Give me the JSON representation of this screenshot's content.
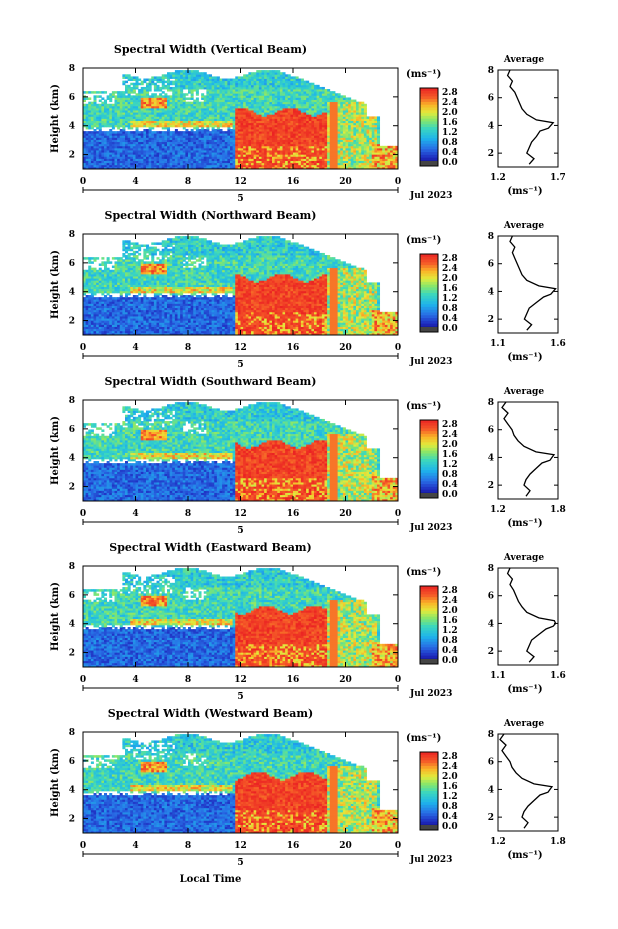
{
  "chart_data": [
    {
      "type": "heatmap",
      "title": "Spectral Width (Vertical Beam)",
      "xlabel": "",
      "ylabel": "Height (km)",
      "xticks": [
        "0",
        "4",
        "8",
        "12",
        "16",
        "20",
        "0"
      ],
      "xrange": [
        0,
        24
      ],
      "yticks": [
        "2",
        "4",
        "6",
        "8"
      ],
      "yrange": [
        1,
        8
      ],
      "date_label": "Jul 2023",
      "day_label": "5",
      "colorbar": {
        "unit": "(ms⁻¹)",
        "ticks": [
          "2.8",
          "2.4",
          "2.0",
          "1.6",
          "1.2",
          "0.8",
          "0.4",
          "0.0"
        ]
      },
      "profile": {
        "title": "Average",
        "xlabel": "(ms⁻¹)",
        "xticks": [
          "1.2",
          "1.7"
        ],
        "xrange": [
          1.2,
          1.7
        ],
        "yticks": [
          "2",
          "4",
          "6",
          "8"
        ],
        "yrange": [
          1,
          8
        ],
        "height_km": [
          1.2,
          1.6,
          2.0,
          2.4,
          2.8,
          3.2,
          3.6,
          3.8,
          4.0,
          4.2,
          4.4,
          4.8,
          5.2,
          5.6,
          6.0,
          6.4,
          6.8,
          7.2,
          7.6,
          8.0
        ],
        "values": [
          1.46,
          1.5,
          1.44,
          1.46,
          1.48,
          1.52,
          1.55,
          1.62,
          1.64,
          1.66,
          1.52,
          1.44,
          1.4,
          1.38,
          1.36,
          1.34,
          1.3,
          1.32,
          1.28,
          1.3
        ]
      }
    },
    {
      "type": "heatmap",
      "title": "Spectral Width (Northward Beam)",
      "xlabel": "",
      "ylabel": "Height (km)",
      "xticks": [
        "0",
        "4",
        "8",
        "12",
        "16",
        "20",
        "0"
      ],
      "xrange": [
        0,
        24
      ],
      "yticks": [
        "2",
        "4",
        "6",
        "8"
      ],
      "yrange": [
        1,
        8
      ],
      "date_label": "Jul 2023",
      "day_label": "5",
      "colorbar": {
        "unit": "(ms⁻¹)",
        "ticks": [
          "2.8",
          "2.4",
          "2.0",
          "1.6",
          "1.2",
          "0.8",
          "0.4",
          "0.0"
        ]
      },
      "profile": {
        "title": "Average",
        "xlabel": "(ms⁻¹)",
        "xticks": [
          "1.1",
          "1.6"
        ],
        "xrange": [
          1.1,
          1.6
        ],
        "yticks": [
          "2",
          "4",
          "6",
          "8"
        ],
        "yrange": [
          1,
          8
        ],
        "height_km": [
          1.2,
          1.6,
          2.0,
          2.4,
          2.8,
          3.2,
          3.6,
          3.8,
          4.0,
          4.2,
          4.4,
          4.8,
          5.2,
          5.6,
          6.0,
          6.4,
          6.8,
          7.2,
          7.6,
          8.0
        ],
        "values": [
          1.34,
          1.38,
          1.32,
          1.34,
          1.36,
          1.42,
          1.48,
          1.54,
          1.56,
          1.58,
          1.44,
          1.34,
          1.3,
          1.28,
          1.26,
          1.24,
          1.22,
          1.24,
          1.2,
          1.22
        ]
      }
    },
    {
      "type": "heatmap",
      "title": "Spectral Width (Southward Beam)",
      "xlabel": "",
      "ylabel": "Height (km)",
      "xticks": [
        "0",
        "4",
        "8",
        "12",
        "16",
        "20",
        "0"
      ],
      "xrange": [
        0,
        24
      ],
      "yticks": [
        "2",
        "4",
        "6",
        "8"
      ],
      "yrange": [
        1,
        8
      ],
      "date_label": "Jul 2023",
      "day_label": "5",
      "colorbar": {
        "unit": "(ms⁻¹)",
        "ticks": [
          "2.8",
          "2.4",
          "2.0",
          "1.6",
          "1.2",
          "0.8",
          "0.4",
          "0.0"
        ]
      },
      "profile": {
        "title": "Average",
        "xlabel": "(ms⁻¹)",
        "xticks": [
          "1.2",
          "1.8"
        ],
        "xrange": [
          1.2,
          1.8
        ],
        "yticks": [
          "2",
          "4",
          "6",
          "8"
        ],
        "yrange": [
          1,
          8
        ],
        "height_km": [
          1.2,
          1.6,
          2.0,
          2.4,
          2.8,
          3.2,
          3.6,
          3.8,
          4.0,
          4.2,
          4.4,
          4.8,
          5.2,
          5.6,
          6.0,
          6.4,
          6.8,
          7.2,
          7.6,
          8.0
        ],
        "values": [
          1.48,
          1.52,
          1.46,
          1.48,
          1.52,
          1.58,
          1.64,
          1.72,
          1.74,
          1.76,
          1.58,
          1.46,
          1.4,
          1.36,
          1.34,
          1.3,
          1.26,
          1.3,
          1.24,
          1.28
        ]
      }
    },
    {
      "type": "heatmap",
      "title": "Spectral Width (Eastward Beam)",
      "xlabel": "",
      "ylabel": "Height (km)",
      "xticks": [
        "0",
        "4",
        "8",
        "12",
        "16",
        "20",
        "0"
      ],
      "xrange": [
        0,
        24
      ],
      "yticks": [
        "2",
        "4",
        "6",
        "8"
      ],
      "yrange": [
        1,
        8
      ],
      "date_label": "Jul 2023",
      "day_label": "5",
      "colorbar": {
        "unit": "(ms⁻¹)",
        "ticks": [
          "2.8",
          "2.4",
          "2.0",
          "1.6",
          "1.2",
          "0.8",
          "0.4",
          "0.0"
        ]
      },
      "profile": {
        "title": "Average",
        "xlabel": "(ms⁻¹)",
        "xticks": [
          "1.1",
          "1.6"
        ],
        "xrange": [
          1.1,
          1.6
        ],
        "yticks": [
          "2",
          "4",
          "6",
          "8"
        ],
        "yrange": [
          1,
          8
        ],
        "height_km": [
          1.2,
          1.6,
          2.0,
          2.4,
          2.8,
          3.2,
          3.6,
          3.8,
          4.0,
          4.2,
          4.4,
          4.8,
          5.2,
          5.6,
          6.0,
          6.4,
          6.8,
          7.2,
          7.6,
          8.0
        ],
        "values": [
          1.36,
          1.4,
          1.34,
          1.36,
          1.38,
          1.44,
          1.5,
          1.56,
          1.58,
          1.57,
          1.44,
          1.34,
          1.3,
          1.27,
          1.25,
          1.23,
          1.2,
          1.22,
          1.18,
          1.2
        ]
      }
    },
    {
      "type": "heatmap",
      "title": "Spectral Width (Westward Beam)",
      "xlabel": "Local Time",
      "ylabel": "Height (km)",
      "xticks": [
        "0",
        "4",
        "8",
        "12",
        "16",
        "20",
        "0"
      ],
      "xrange": [
        0,
        24
      ],
      "yticks": [
        "2",
        "4",
        "6",
        "8"
      ],
      "yrange": [
        1,
        8
      ],
      "date_label": "Jul 2023",
      "day_label": "5",
      "colorbar": {
        "unit": "(ms⁻¹)",
        "ticks": [
          "2.8",
          "2.4",
          "2.0",
          "1.6",
          "1.2",
          "0.8",
          "0.4",
          "0.0"
        ]
      },
      "profile": {
        "title": "Average",
        "xlabel": "(ms⁻¹)",
        "xticks": [
          "1.2",
          "1.8"
        ],
        "xrange": [
          1.2,
          1.8
        ],
        "yticks": [
          "2",
          "4",
          "6",
          "8"
        ],
        "yrange": [
          1,
          8
        ],
        "height_km": [
          1.2,
          1.6,
          2.0,
          2.4,
          2.8,
          3.2,
          3.6,
          3.8,
          4.0,
          4.2,
          4.4,
          4.8,
          5.2,
          5.6,
          6.0,
          6.4,
          6.8,
          7.2,
          7.6,
          8.0
        ],
        "values": [
          1.46,
          1.5,
          1.44,
          1.46,
          1.5,
          1.56,
          1.62,
          1.7,
          1.72,
          1.74,
          1.56,
          1.44,
          1.38,
          1.34,
          1.32,
          1.28,
          1.24,
          1.28,
          1.22,
          1.26
        ]
      }
    }
  ]
}
